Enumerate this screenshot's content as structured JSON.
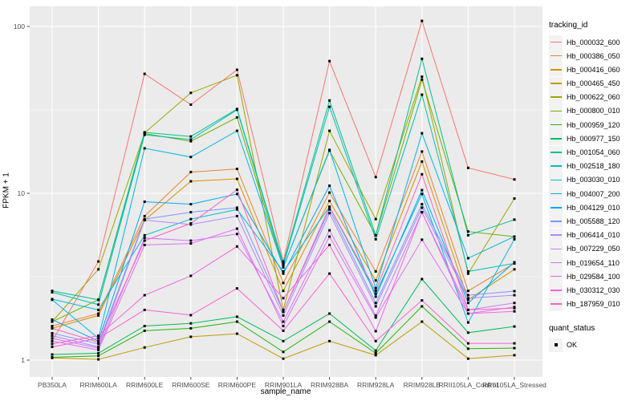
{
  "chart_data": {
    "type": "line",
    "title": "",
    "xlabel": "sample_name",
    "ylabel": "FPKM + 1",
    "y_scale": "log10",
    "y_ticks": [
      "1",
      "10",
      "100"
    ],
    "y_tick_values": [
      1,
      10,
      100
    ],
    "y_minor_values": [
      3.162,
      31.62
    ],
    "ylim": [
      0.79,
      132
    ],
    "grid": true,
    "panel_bg": "#EBEBEB",
    "legend_position": "right",
    "legend_title": "tracking_id",
    "categories": [
      "PB350LA",
      "RRIM600LA",
      "RRIM600LE",
      "RRIM600SE",
      "RRIM600PE",
      "RRIM901LA",
      "RRIM928BA",
      "RRIM928LA",
      "RRIM928LB",
      "RRII105LA_Control",
      "RRII105LA_Stressed"
    ],
    "series": [
      {
        "name": "Hb_000032_600",
        "color": "#F8766D",
        "values": [
          1.3,
          3.9,
          52,
          34,
          55,
          3.9,
          62,
          12.5,
          108,
          14.2,
          12.1
        ]
      },
      {
        "name": "Hb_000386_050",
        "color": "#EA8331",
        "values": [
          1.6,
          1.9,
          7.3,
          13.4,
          14.0,
          2.9,
          10.1,
          3.4,
          17.8,
          2.6,
          3.8
        ]
      },
      {
        "name": "Hb_000416_060",
        "color": "#D89000",
        "values": [
          1.55,
          1.85,
          6.9,
          11.8,
          12.2,
          2.6,
          9.0,
          3.0,
          15.5,
          2.3,
          3.5
        ]
      },
      {
        "name": "Hb_000465_450",
        "color": "#BE9C00",
        "values": [
          1.03,
          1.01,
          1.19,
          1.38,
          1.44,
          1.02,
          1.3,
          1.07,
          1.7,
          1.02,
          1.07
        ]
      },
      {
        "name": "Hb_000622_060",
        "color": "#9CA700",
        "values": [
          1.7,
          3.5,
          23,
          40,
          51,
          2.0,
          23.7,
          7.0,
          50,
          3.3,
          9.3
        ]
      },
      {
        "name": "Hb_000800_010",
        "color": "#6FB000",
        "values": [
          1.7,
          2.3,
          22.8,
          20.5,
          28.5,
          3.6,
          18.0,
          5.6,
          48,
          5.9,
          5.5
        ]
      },
      {
        "name": "Hb_000959_120",
        "color": "#24B700",
        "values": [
          1.04,
          1.06,
          1.5,
          1.55,
          1.7,
          1.12,
          1.7,
          1.1,
          2.1,
          1.17,
          1.18
        ]
      },
      {
        "name": "Hb_000977_150",
        "color": "#00BC59",
        "values": [
          1.08,
          1.1,
          1.6,
          1.66,
          1.82,
          1.3,
          1.9,
          1.14,
          3.06,
          1.46,
          1.59
        ]
      },
      {
        "name": "Hb_001054_060",
        "color": "#00C08B",
        "values": [
          2.6,
          2.3,
          23.2,
          21.9,
          32,
          3.8,
          36,
          5.6,
          64,
          5.6,
          6.95
        ]
      },
      {
        "name": "Hb_002518_180",
        "color": "#00C0B4",
        "values": [
          2.55,
          2.15,
          22.4,
          21.0,
          31.7,
          3.7,
          33,
          5.3,
          39,
          3.4,
          3.8
        ]
      },
      {
        "name": "Hb_003030_010",
        "color": "#00BDD4",
        "values": [
          2.32,
          2.0,
          5.6,
          7.0,
          8.0,
          3.4,
          8.3,
          2.5,
          9.9,
          1.68,
          5.3
        ]
      },
      {
        "name": "Hb_004007_200",
        "color": "#00B5EC",
        "values": [
          2.3,
          1.35,
          18.6,
          16.5,
          23.7,
          3.6,
          18.2,
          2.7,
          22.9,
          4.08,
          5.5
        ]
      },
      {
        "name": "Hb_004129_010",
        "color": "#00A8FB",
        "values": [
          1.75,
          1.3,
          8.9,
          8.6,
          9.9,
          3.3,
          11.1,
          2.4,
          10.45,
          2.2,
          3.86
        ]
      },
      {
        "name": "Hb_005588_120",
        "color": "#7F96FF",
        "values": [
          1.45,
          1.25,
          7.0,
          7.7,
          8.2,
          1.95,
          8.0,
          2.2,
          8.6,
          2.45,
          2.59
        ]
      },
      {
        "name": "Hb_006414_010",
        "color": "#AC88FF",
        "values": [
          1.4,
          1.2,
          6.9,
          6.5,
          7.3,
          1.85,
          7.6,
          2.1,
          8.2,
          2.35,
          2.45
        ]
      },
      {
        "name": "Hb_007229_050",
        "color": "#CD79FF",
        "values": [
          1.35,
          1.18,
          5.4,
          5.2,
          5.7,
          1.7,
          6.0,
          1.85,
          7.7,
          2.0,
          2.2
        ]
      },
      {
        "name": "Hb_019654_110",
        "color": "#E36EF6",
        "values": [
          1.3,
          1.15,
          4.9,
          5.0,
          6.14,
          1.6,
          5.5,
          1.8,
          5.27,
          1.9,
          2.08
        ]
      },
      {
        "name": "Hb_029584_100",
        "color": "#F265E6",
        "values": [
          1.25,
          1.4,
          2.45,
          3.2,
          4.8,
          2.35,
          4.9,
          1.49,
          7.7,
          1.9,
          1.96
        ]
      },
      {
        "name": "Hb_030312_030",
        "color": "#FB61D2",
        "values": [
          1.2,
          1.35,
          2.0,
          1.86,
          2.69,
          1.5,
          3.3,
          1.3,
          2.28,
          1.26,
          1.26
        ]
      },
      {
        "name": "Hb_187959_010",
        "color": "#FF62BC",
        "values": [
          1.55,
          1.28,
          5.2,
          6.6,
          10.5,
          1.95,
          8.3,
          2.6,
          13.0,
          2.0,
          2.05
        ]
      }
    ],
    "quant_legend": {
      "title": "quant_status",
      "items": [
        "OK"
      ],
      "marker_color": "#000000"
    }
  }
}
